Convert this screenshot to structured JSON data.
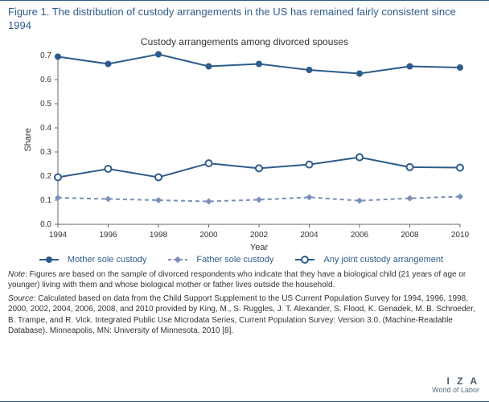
{
  "figure_title": "Figure 1. The distribution of custody arrangements in the US has remained fairly consistent since 1994",
  "chart": {
    "title": "Custody arrangements among divorced spouses",
    "type": "line",
    "xlabel": "Year",
    "ylabel": "Share",
    "xlim": [
      1994,
      2010
    ],
    "ylim": [
      0,
      0.7
    ],
    "xtick_step": 2,
    "ytick_step": 0.1,
    "xticks": [
      1994,
      1996,
      1998,
      2000,
      2002,
      2004,
      2006,
      2008,
      2010
    ],
    "yticks": [
      0,
      0.1,
      0.2,
      0.3,
      0.4,
      0.5,
      0.6,
      0.7
    ],
    "background_color": "#ffffff",
    "grid_color": "#d9e0e6",
    "axis_color": "#666666",
    "axis_border": "#2e5c8a",
    "line_width": 2,
    "marker_size": 4,
    "label_fontsize": 11,
    "tick_fontsize": 10,
    "series": [
      {
        "name": "Mother sole custody",
        "color": "#2e5c8a",
        "marker": "filled-circle",
        "dash": "solid",
        "x": [
          1994,
          1996,
          1998,
          2000,
          2002,
          2004,
          2006,
          2008,
          2010
        ],
        "y": [
          0.695,
          0.665,
          0.705,
          0.655,
          0.665,
          0.64,
          0.625,
          0.655,
          0.65
        ]
      },
      {
        "name": "Father sole custody",
        "color": "#7a8fb8",
        "marker": "filled-diamond",
        "dash": "dashed",
        "x": [
          1994,
          1996,
          1998,
          2000,
          2002,
          2004,
          2006,
          2008,
          2010
        ],
        "y": [
          0.11,
          0.105,
          0.1,
          0.095,
          0.102,
          0.112,
          0.098,
          0.108,
          0.115
        ]
      },
      {
        "name": "Any joint custody arrangement",
        "color": "#2e5c8a",
        "marker": "open-circle",
        "dash": "solid",
        "x": [
          1994,
          1996,
          1998,
          2000,
          2002,
          2004,
          2006,
          2008,
          2010
        ],
        "y": [
          0.195,
          0.23,
          0.195,
          0.253,
          0.232,
          0.248,
          0.278,
          0.237,
          0.235
        ]
      }
    ]
  },
  "legend_items": [
    "Mother sole custody",
    "Father sole custody",
    "Any joint custody arrangement"
  ],
  "note_label": "Note",
  "note_text": ": Figures are based on the sample of divorced respondents who indicate that they have a biological child (21 years of age or younger) living with them and whose biological mother or father lives outside the household.",
  "source_label": "Source",
  "source_text": ": Calculated based on data from the Child Support Supplement to the US Current Population Survey for 1994, 1996, 1998, 2000, 2002, 2004, 2006, 2008, and 2010 provided by King, M., S. Ruggles, J. T. Alexander, S. Flood, K. Genadek, M. B. Schroeder, B. Trampe, and R. Vick. Integrated Public Use Microdata Series, Current Population Survey: Version 3.0. (Machine-Readable Database). Minneapolis, MN: University of Minnesota, 2010 [8].",
  "iza": {
    "logo": "I Z A",
    "tagline": "World of Labor"
  }
}
